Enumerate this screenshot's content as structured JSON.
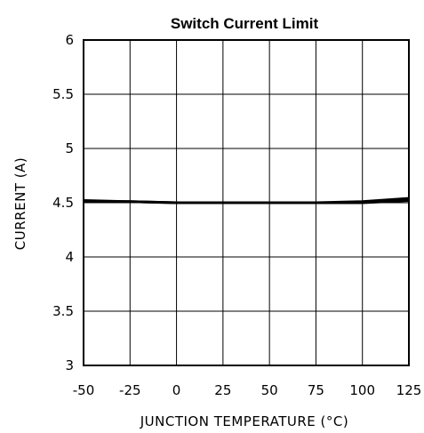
{
  "chart_data": {
    "type": "line",
    "title": "Switch Current Limit",
    "xlabel": "JUNCTION TEMPERATURE (°C)",
    "ylabel": "CURRENT (A)",
    "xlim": [
      -50,
      125
    ],
    "ylim": [
      3,
      6
    ],
    "xticks": [
      -50,
      -25,
      0,
      25,
      50,
      75,
      100,
      125
    ],
    "yticks": [
      3,
      3.5,
      4,
      4.5,
      5,
      5.5,
      6
    ],
    "xtick_labels": [
      "-50",
      "-25",
      "0",
      "25",
      "50",
      "75",
      "100",
      "125"
    ],
    "ytick_labels": [
      "3",
      "3.5",
      "4",
      "4.5",
      "5",
      "5.5",
      "6"
    ],
    "grid": true,
    "series": [
      {
        "color": "#000000",
        "x": [
          -50,
          -25,
          0,
          25,
          50,
          75,
          100,
          125
        ],
        "y": [
          4.52,
          4.51,
          4.5,
          4.5,
          4.5,
          4.5,
          4.51,
          4.54
        ]
      },
      {
        "color": "#000000",
        "x": [
          -50,
          -25,
          0,
          25,
          50,
          75,
          100,
          125
        ],
        "y": [
          4.51,
          4.51,
          4.5,
          4.5,
          4.5,
          4.5,
          4.5,
          4.52
        ]
      }
    ]
  }
}
